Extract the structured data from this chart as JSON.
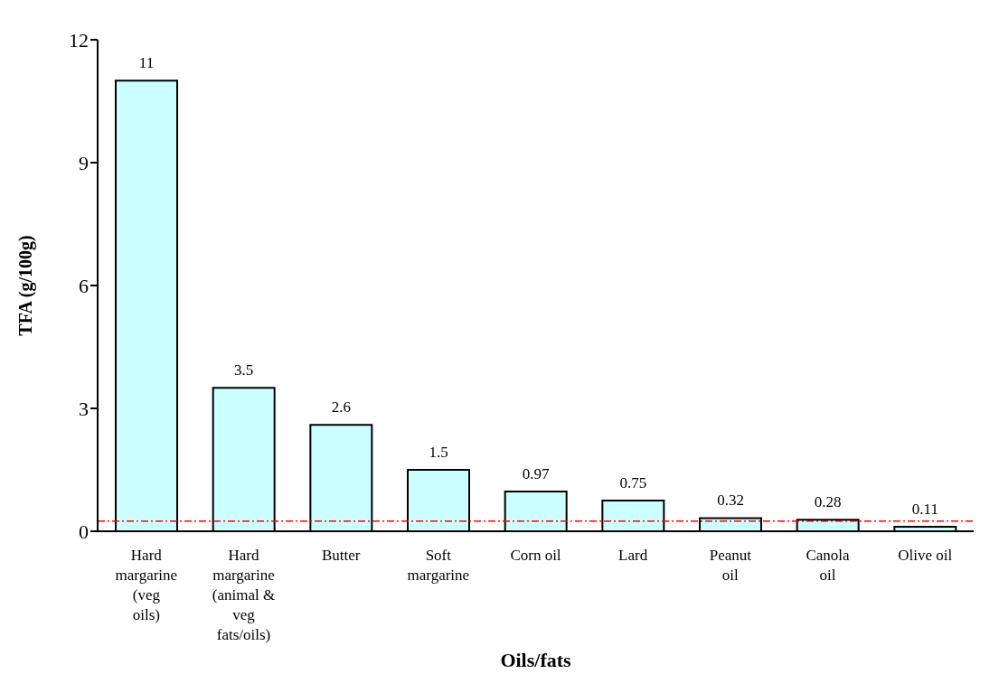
{
  "chart_data": {
    "type": "bar",
    "xlabel": "Oils/fats",
    "ylabel": "TFA (g/100g)",
    "categories": [
      "Hard margarine (veg oils)",
      "Hard margarine (animal & veg fats/oils)",
      "Butter",
      "Soft margarine",
      "Corn oil",
      "Lard",
      "Peanut oil",
      "Canola oil",
      "Olive oil"
    ],
    "values": [
      11,
      3.5,
      2.6,
      1.5,
      0.97,
      0.75,
      0.32,
      0.28,
      0.11
    ],
    "color": "#ccffff",
    "ylim": [
      0,
      12
    ],
    "yticks": [
      0,
      3,
      6,
      9,
      12
    ],
    "grid": false,
    "legend": false,
    "data_labels": true,
    "ref_lines": [
      {
        "axis": "y",
        "value": 0.25,
        "color": "#ff0000",
        "line_style": "dashdot"
      }
    ]
  }
}
